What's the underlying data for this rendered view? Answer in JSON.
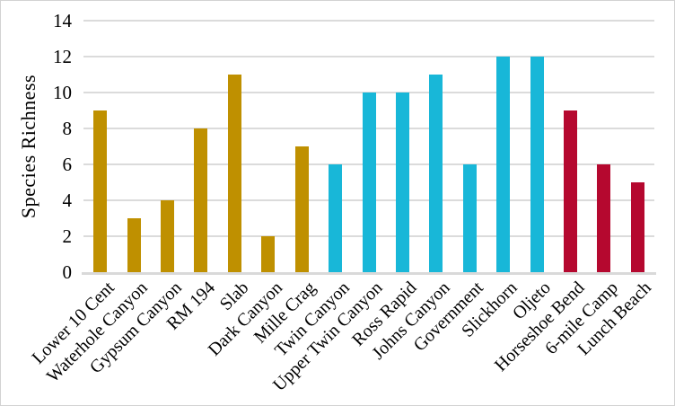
{
  "chart_data": {
    "type": "bar",
    "title": "",
    "xlabel": "",
    "ylabel": "Species Richness",
    "ylim": [
      0,
      14
    ],
    "yticks": [
      0,
      2,
      4,
      6,
      8,
      10,
      12,
      14
    ],
    "grid": "horizontal",
    "legend": "none",
    "categories": [
      "Lower 10 Cent",
      "Waterhole Canyon",
      "Gypsum Canyon",
      "RM 194",
      "Slab",
      "Dark Canyon",
      "Mille Crag",
      "Twin Canyon",
      "Upper Twin Canyon",
      "Ross Rapid",
      "Johns Canyon",
      "Government",
      "Slickhorn",
      "Oljeto",
      "Horseshoe Bend",
      "6-mile Camp",
      "Lunch Beach"
    ],
    "values": [
      9,
      3,
      4,
      8,
      11,
      2,
      7,
      6,
      10,
      10,
      11,
      6,
      12,
      12,
      9,
      6,
      5
    ],
    "bar_colors": [
      "#BF9000",
      "#BF9000",
      "#BF9000",
      "#BF9000",
      "#BF9000",
      "#BF9000",
      "#BF9000",
      "#18B7D8",
      "#18B7D8",
      "#18B7D8",
      "#18B7D8",
      "#18B7D8",
      "#18B7D8",
      "#18B7D8",
      "#B5082F",
      "#B5082F",
      "#B5082F"
    ],
    "palette": {
      "gold": "#BF9000",
      "cyan": "#18B7D8",
      "crimson": "#B5082F"
    },
    "gridline_color": "#DBDBDB",
    "axis_line_color": "#D9D9D9",
    "text_color": "#000000",
    "background_color": "#FFFFFF",
    "border_color": "#D2D2D2"
  }
}
